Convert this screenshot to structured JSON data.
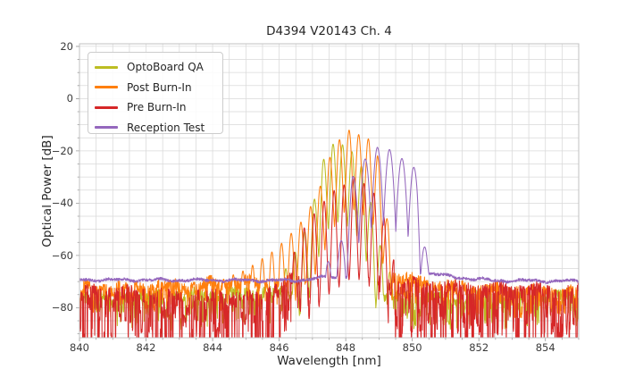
{
  "figure": {
    "background": "#ffffff"
  },
  "chart_data": {
    "type": "line",
    "title": "D4394 V20143 Ch. 4",
    "xlabel": "Wavelength [nm]",
    "ylabel": "Optical Power [dB]",
    "xlim": [
      840,
      855
    ],
    "ylim": [
      -91.5,
      21
    ],
    "xticks": [
      840,
      842,
      844,
      846,
      848,
      850,
      852,
      854
    ],
    "yticks": [
      20,
      0,
      -20,
      -40,
      -60,
      -80
    ],
    "minor_x_step": 0.5,
    "minor_y_step": 5,
    "grid": "both",
    "grid_color": "#d9d9d9",
    "spine_color": "#c0c0c0",
    "tick_color": "#999999",
    "text_color": "#262626",
    "legend_position": "upper left",
    "sample_step_nm": 0.008,
    "series": [
      {
        "name": "OptoBoard QA",
        "color": "#bcbd22",
        "seed": 3,
        "mode_spacing_nm": 0.285,
        "mode_phase_nm": 847.62,
        "mode_depth_db": 30,
        "mode_sharpness": 1.3,
        "envelope": [
          [
            845.2,
            -74
          ],
          [
            845.6,
            -71
          ],
          [
            846.0,
            -69
          ],
          [
            846.3,
            -63
          ],
          [
            846.6,
            -56
          ],
          [
            846.9,
            -47
          ],
          [
            847.1,
            -36
          ],
          [
            847.3,
            -24
          ],
          [
            847.6,
            -17.4
          ],
          [
            847.9,
            -17.6
          ],
          [
            848.15,
            -19.6
          ],
          [
            848.45,
            -25
          ],
          [
            848.7,
            -36
          ],
          [
            848.9,
            -50
          ],
          [
            849.15,
            -61
          ],
          [
            849.45,
            -70
          ],
          [
            849.7,
            -77
          ]
        ],
        "floor": [
          [
            840,
            -76
          ],
          [
            843,
            -75.5
          ],
          [
            845.5,
            -74.5
          ],
          [
            849.6,
            -76
          ],
          [
            855,
            -75.5
          ]
        ],
        "floor_jitter_db": 2.2,
        "spike_depth_db": 11,
        "spike_prob": 0.45
      },
      {
        "name": "Post Burn-In",
        "color": "#ff7f0e",
        "seed": 7,
        "mode_spacing_nm": 0.29,
        "mode_phase_nm": 848.1,
        "mode_depth_db": 30,
        "mode_sharpness": 1.3,
        "envelope": [
          [
            844.1,
            -70.5
          ],
          [
            844.5,
            -68
          ],
          [
            845.0,
            -65.5
          ],
          [
            845.4,
            -62
          ],
          [
            845.8,
            -58.5
          ],
          [
            846.1,
            -55
          ],
          [
            846.4,
            -51
          ],
          [
            846.7,
            -46.5
          ],
          [
            847.0,
            -40
          ],
          [
            847.25,
            -33
          ],
          [
            847.5,
            -23
          ],
          [
            847.8,
            -15.8
          ],
          [
            848.1,
            -12
          ],
          [
            848.4,
            -13.8
          ],
          [
            848.7,
            -15.5
          ],
          [
            848.95,
            -21
          ],
          [
            849.15,
            -36
          ],
          [
            849.35,
            -56
          ],
          [
            849.5,
            -65
          ]
        ],
        "floor": [
          [
            840,
            -73
          ],
          [
            843,
            -71.8
          ],
          [
            845,
            -70.3
          ],
          [
            848,
            -71
          ],
          [
            849.45,
            -67.8
          ],
          [
            850.3,
            -70.5
          ],
          [
            851.5,
            -72.5
          ],
          [
            853,
            -73.5
          ],
          [
            855,
            -74
          ]
        ],
        "floor_jitter_db": 2.2,
        "spike_depth_db": 9,
        "spike_prob": 0.4
      },
      {
        "name": "Pre Burn-In",
        "color": "#d62728",
        "seed": 13,
        "mode_spacing_nm": 0.3,
        "mode_phase_nm": 848.25,
        "mode_depth_db": 38,
        "mode_sharpness": 1.55,
        "envelope": [
          [
            846.35,
            -62
          ],
          [
            846.6,
            -54
          ],
          [
            846.8,
            -48
          ],
          [
            847.05,
            -44
          ],
          [
            847.3,
            -40
          ],
          [
            847.6,
            -35.5
          ],
          [
            847.95,
            -33
          ],
          [
            848.25,
            -30
          ],
          [
            848.55,
            -32.5
          ],
          [
            848.8,
            -35
          ],
          [
            849.05,
            -41
          ],
          [
            849.3,
            -52
          ],
          [
            849.45,
            -62
          ]
        ],
        "floor": [
          [
            840,
            -74
          ],
          [
            843.8,
            -76
          ],
          [
            845.4,
            -76.5
          ],
          [
            846.2,
            -70.5
          ],
          [
            849.3,
            -70.5
          ],
          [
            850.5,
            -72
          ],
          [
            853,
            -73.5
          ],
          [
            855,
            -73.5
          ]
        ],
        "floor_jitter_db": 2.6,
        "spike_depth_db": 26,
        "spike_prob": 0.6
      },
      {
        "name": "Reception Test",
        "color": "#9467bd",
        "seed": 21,
        "mode_spacing_nm": 0.37,
        "mode_phase_nm": 848.95,
        "mode_depth_db": 30,
        "mode_sharpness": 0.85,
        "envelope": [
          [
            847.15,
            -66
          ],
          [
            847.5,
            -62
          ],
          [
            847.8,
            -57
          ],
          [
            848.0,
            -47
          ],
          [
            848.2,
            -30
          ],
          [
            848.55,
            -23.5
          ],
          [
            848.95,
            -18.6
          ],
          [
            849.3,
            -19.3
          ],
          [
            849.62,
            -22.5
          ],
          [
            850.0,
            -24.8
          ],
          [
            850.15,
            -29
          ],
          [
            850.3,
            -46
          ],
          [
            850.45,
            -62
          ],
          [
            850.6,
            -66.5
          ]
        ],
        "floor": [
          [
            840,
            -69.3
          ],
          [
            846.5,
            -69.6
          ],
          [
            847.3,
            -68.5
          ],
          [
            850.45,
            -66.6
          ],
          [
            851.3,
            -68.4
          ],
          [
            852.5,
            -69.6
          ],
          [
            855,
            -69.8
          ]
        ],
        "floor_jitter_db": 0.55,
        "spike_depth_db": 0,
        "spike_prob": 0
      }
    ]
  }
}
